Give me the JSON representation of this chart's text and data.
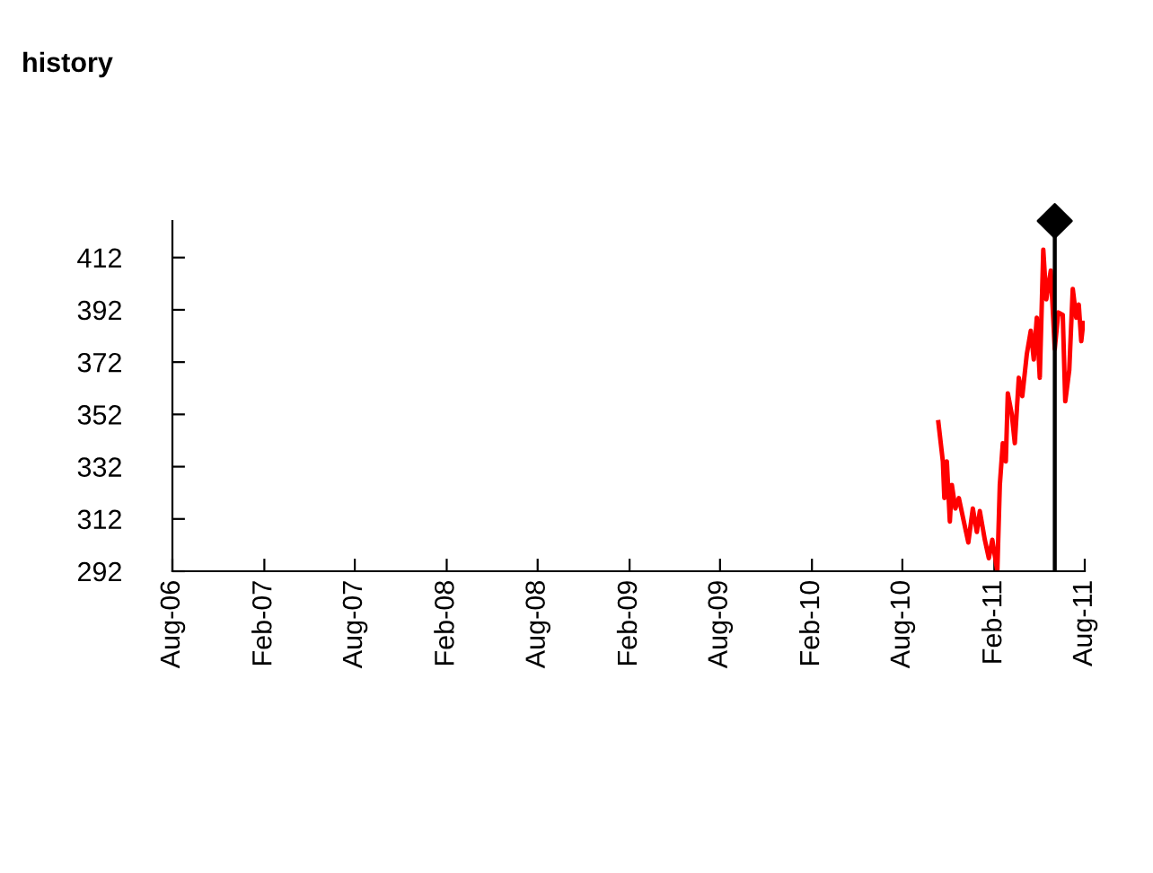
{
  "chart_data": {
    "type": "line",
    "title": "history",
    "xlim": [
      "2006-08-01",
      "2011-08-01"
    ],
    "xticks": [
      {
        "value": "2006-08-01",
        "label": "Aug-06"
      },
      {
        "value": "2007-02-01",
        "label": "Feb-07"
      },
      {
        "value": "2007-08-01",
        "label": "Aug-07"
      },
      {
        "value": "2008-02-01",
        "label": "Feb-08"
      },
      {
        "value": "2008-08-01",
        "label": "Aug-08"
      },
      {
        "value": "2009-02-01",
        "label": "Feb-09"
      },
      {
        "value": "2009-08-01",
        "label": "Aug-09"
      },
      {
        "value": "2010-02-01",
        "label": "Feb-10"
      },
      {
        "value": "2010-08-01",
        "label": "Aug-10"
      },
      {
        "value": "2011-02-01",
        "label": "Feb-11"
      },
      {
        "value": "2011-08-01",
        "label": "Aug-11"
      }
    ],
    "ylim": [
      292,
      426
    ],
    "yticks": [
      292,
      312,
      332,
      352,
      372,
      392,
      412
    ],
    "grid": false,
    "legend": false,
    "ref_lines": [
      {
        "axis": "x",
        "value": "2011-06-02",
        "color": "#000000"
      }
    ],
    "series": [
      {
        "color": "#ff0000",
        "marker": "none",
        "line_style": "solid",
        "x": [
          "2010-10-12",
          "2010-10-21",
          "2010-10-24",
          "2010-10-29",
          "2010-11-04",
          "2010-11-08",
          "2010-11-15",
          "2010-11-22",
          "2010-12-02",
          "2010-12-11",
          "2010-12-20",
          "2010-12-28",
          "2011-01-03",
          "2011-01-13",
          "2011-01-21",
          "2011-01-28",
          "2011-02-07",
          "2011-02-12",
          "2011-02-18",
          "2011-02-24",
          "2011-02-28",
          "2011-03-08",
          "2011-03-14",
          "2011-03-22",
          "2011-03-29",
          "2011-04-07",
          "2011-04-15",
          "2011-04-21",
          "2011-04-27",
          "2011-05-03",
          "2011-05-10",
          "2011-05-16",
          "2011-05-25",
          "2011-06-02",
          "2011-06-09",
          "2011-06-18",
          "2011-06-23",
          "2011-07-01",
          "2011-07-08",
          "2011-07-15",
          "2011-07-20",
          "2011-07-25",
          "2011-07-29"
        ],
        "values": [
          349,
          334,
          320,
          334,
          311,
          325,
          316,
          320,
          311,
          303,
          316,
          307,
          315,
          304,
          297,
          304,
          292,
          325,
          341,
          334,
          360,
          352,
          341,
          366,
          359,
          375,
          384,
          373,
          389,
          366,
          415,
          396,
          407,
          377,
          391,
          390,
          357,
          369,
          400,
          389,
          394,
          380,
          387
        ]
      },
      {
        "type": "scatter",
        "color": "#000000",
        "marker": "diamond",
        "x": [
          "2011-06-02"
        ],
        "values": [
          426
        ]
      }
    ]
  }
}
